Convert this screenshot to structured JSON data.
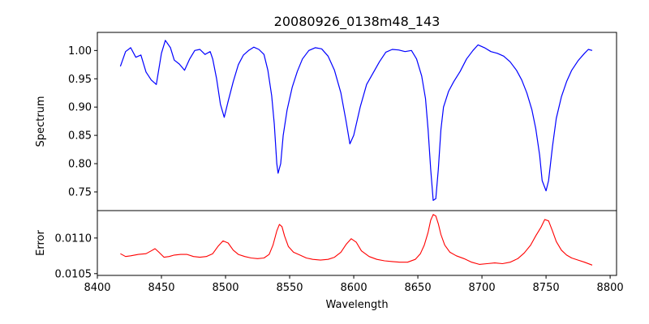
{
  "chart_data": {
    "type": "line",
    "title": "20080926_0138m48_143",
    "xlabel": "Wavelength",
    "xlim": [
      8400,
      8805
    ],
    "xticks": [
      8400,
      8450,
      8500,
      8550,
      8600,
      8650,
      8700,
      8750,
      8800
    ],
    "x_range": [
      8418,
      8786
    ],
    "panels": [
      {
        "name": "spectrum",
        "ylabel": "Spectrum",
        "ylim": [
          0.717,
          1.032
        ],
        "yticks": [
          0.75,
          0.8,
          0.85,
          0.9,
          0.95,
          1.0
        ],
        "ytick_labels": [
          "0.75",
          "0.80",
          "0.85",
          "0.90",
          "0.95",
          "1.00"
        ],
        "series": [
          {
            "name": "spectrum",
            "color": "#0000ff",
            "points": [
              [
                8418,
                0.972
              ],
              [
                8422,
                0.998
              ],
              [
                8426,
                1.005
              ],
              [
                8430,
                0.988
              ],
              [
                8434,
                0.992
              ],
              [
                8438,
                0.962
              ],
              [
                8442,
                0.948
              ],
              [
                8446,
                0.94
              ],
              [
                8450,
                0.995
              ],
              [
                8453,
                1.018
              ],
              [
                8457,
                1.005
              ],
              [
                8460,
                0.983
              ],
              [
                8464,
                0.976
              ],
              [
                8468,
                0.965
              ],
              [
                8472,
                0.985
              ],
              [
                8476,
                1.0
              ],
              [
                8480,
                1.002
              ],
              [
                8484,
                0.993
              ],
              [
                8488,
                0.998
              ],
              [
                8490,
                0.985
              ],
              [
                8493,
                0.95
              ],
              [
                8496,
                0.905
              ],
              [
                8499,
                0.882
              ],
              [
                8502,
                0.91
              ],
              [
                8506,
                0.945
              ],
              [
                8510,
                0.975
              ],
              [
                8514,
                0.992
              ],
              [
                8518,
                1.0
              ],
              [
                8522,
                1.006
              ],
              [
                8526,
                1.002
              ],
              [
                8530,
                0.993
              ],
              [
                8533,
                0.965
              ],
              [
                8536,
                0.92
              ],
              [
                8538,
                0.87
              ],
              [
                8540,
                0.8
              ],
              [
                8541,
                0.783
              ],
              [
                8543,
                0.8
              ],
              [
                8545,
                0.85
              ],
              [
                8548,
                0.895
              ],
              [
                8552,
                0.935
              ],
              [
                8556,
                0.963
              ],
              [
                8560,
                0.985
              ],
              [
                8565,
                1.0
              ],
              [
                8570,
                1.005
              ],
              [
                8575,
                1.003
              ],
              [
                8580,
                0.99
              ],
              [
                8585,
                0.965
              ],
              [
                8590,
                0.925
              ],
              [
                8594,
                0.875
              ],
              [
                8597,
                0.835
              ],
              [
                8600,
                0.85
              ],
              [
                8605,
                0.9
              ],
              [
                8610,
                0.94
              ],
              [
                8615,
                0.96
              ],
              [
                8620,
                0.98
              ],
              [
                8625,
                0.997
              ],
              [
                8630,
                1.002
              ],
              [
                8635,
                1.001
              ],
              [
                8640,
                0.998
              ],
              [
                8645,
                1.0
              ],
              [
                8649,
                0.985
              ],
              [
                8653,
                0.955
              ],
              [
                8656,
                0.915
              ],
              [
                8658,
                0.86
              ],
              [
                8660,
                0.79
              ],
              [
                8662,
                0.735
              ],
              [
                8664,
                0.738
              ],
              [
                8666,
                0.79
              ],
              [
                8668,
                0.86
              ],
              [
                8670,
                0.9
              ],
              [
                8674,
                0.928
              ],
              [
                8678,
                0.945
              ],
              [
                8683,
                0.963
              ],
              [
                8688,
                0.985
              ],
              [
                8693,
                1.0
              ],
              [
                8697,
                1.01
              ],
              [
                8702,
                1.005
              ],
              [
                8707,
                0.998
              ],
              [
                8712,
                0.995
              ],
              [
                8717,
                0.99
              ],
              [
                8722,
                0.98
              ],
              [
                8727,
                0.965
              ],
              [
                8731,
                0.948
              ],
              [
                8735,
                0.925
              ],
              [
                8739,
                0.895
              ],
              [
                8742,
                0.862
              ],
              [
                8745,
                0.815
              ],
              [
                8747,
                0.77
              ],
              [
                8750,
                0.752
              ],
              [
                8752,
                0.77
              ],
              [
                8755,
                0.83
              ],
              [
                8758,
                0.88
              ],
              [
                8762,
                0.918
              ],
              [
                8766,
                0.945
              ],
              [
                8770,
                0.965
              ],
              [
                8775,
                0.982
              ],
              [
                8780,
                0.995
              ],
              [
                8783,
                1.002
              ],
              [
                8786,
                1.0
              ]
            ]
          }
        ]
      },
      {
        "name": "error",
        "ylabel": "Error",
        "ylim": [
          0.010475,
          0.011385
        ],
        "yticks": [
          0.0105,
          0.011
        ],
        "ytick_labels": [
          "0.0105",
          "0.0110"
        ],
        "series": [
          {
            "name": "error",
            "color": "#ff0000",
            "points": [
              [
                8418,
                0.01078
              ],
              [
                8422,
                0.01074
              ],
              [
                8426,
                0.01075
              ],
              [
                8432,
                0.01077
              ],
              [
                8438,
                0.01078
              ],
              [
                8442,
                0.01082
              ],
              [
                8445,
                0.01085
              ],
              [
                8448,
                0.0108
              ],
              [
                8452,
                0.01073
              ],
              [
                8456,
                0.01074
              ],
              [
                8460,
                0.01076
              ],
              [
                8465,
                0.01077
              ],
              [
                8470,
                0.01077
              ],
              [
                8475,
                0.01074
              ],
              [
                8480,
                0.01073
              ],
              [
                8485,
                0.01074
              ],
              [
                8490,
                0.01078
              ],
              [
                8494,
                0.01088
              ],
              [
                8498,
                0.01096
              ],
              [
                8502,
                0.01093
              ],
              [
                8506,
                0.01083
              ],
              [
                8510,
                0.01077
              ],
              [
                8515,
                0.01074
              ],
              [
                8520,
                0.01072
              ],
              [
                8525,
                0.01071
              ],
              [
                8530,
                0.01072
              ],
              [
                8534,
                0.01077
              ],
              [
                8537,
                0.0109
              ],
              [
                8540,
                0.0111
              ],
              [
                8542,
                0.01119
              ],
              [
                8544,
                0.01116
              ],
              [
                8546,
                0.01103
              ],
              [
                8549,
                0.01088
              ],
              [
                8553,
                0.0108
              ],
              [
                8558,
                0.01076
              ],
              [
                8563,
                0.01072
              ],
              [
                8568,
                0.0107
              ],
              [
                8574,
                0.01069
              ],
              [
                8580,
                0.0107
              ],
              [
                8585,
                0.01073
              ],
              [
                8590,
                0.0108
              ],
              [
                8594,
                0.01091
              ],
              [
                8598,
                0.01099
              ],
              [
                8602,
                0.01094
              ],
              [
                8606,
                0.01082
              ],
              [
                8612,
                0.01074
              ],
              [
                8618,
                0.0107
              ],
              [
                8624,
                0.01068
              ],
              [
                8630,
                0.01067
              ],
              [
                8636,
                0.01066
              ],
              [
                8642,
                0.01066
              ],
              [
                8648,
                0.0107
              ],
              [
                8652,
                0.01078
              ],
              [
                8655,
                0.0109
              ],
              [
                8658,
                0.01108
              ],
              [
                8660,
                0.01125
              ],
              [
                8662,
                0.01133
              ],
              [
                8664,
                0.01131
              ],
              [
                8666,
                0.0112
              ],
              [
                8668,
                0.01105
              ],
              [
                8671,
                0.0109
              ],
              [
                8675,
                0.0108
              ],
              [
                8680,
                0.01075
              ],
              [
                8686,
                0.01071
              ],
              [
                8692,
                0.01066
              ],
              [
                8698,
                0.01063
              ],
              [
                8704,
                0.01064
              ],
              [
                8710,
                0.01065
              ],
              [
                8716,
                0.01064
              ],
              [
                8722,
                0.01066
              ],
              [
                8728,
                0.01071
              ],
              [
                8733,
                0.01079
              ],
              [
                8738,
                0.0109
              ],
              [
                8742,
                0.01103
              ],
              [
                8746,
                0.01115
              ],
              [
                8749,
                0.01126
              ],
              [
                8752,
                0.01124
              ],
              [
                8755,
                0.0111
              ],
              [
                8758,
                0.01095
              ],
              [
                8762,
                0.01083
              ],
              [
                8766,
                0.01076
              ],
              [
                8770,
                0.01072
              ],
              [
                8775,
                0.01069
              ],
              [
                8780,
                0.01066
              ],
              [
                8786,
                0.01062
              ]
            ]
          }
        ]
      }
    ]
  }
}
